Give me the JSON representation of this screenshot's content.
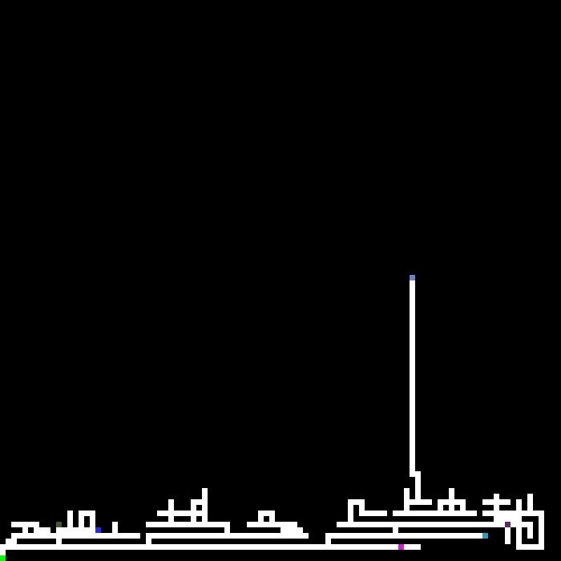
{
  "game": {
    "background": "#000000",
    "path_color": "#ffffff",
    "grid_cols": 100,
    "grid_rows": 100,
    "markers": [
      {
        "name": "agent-marker",
        "color": "#00ff00"
      },
      {
        "name": "goal-marker-blue",
        "color": "#7080c8"
      },
      {
        "name": "item-marker-navy",
        "color": "#2a2ae0"
      },
      {
        "name": "item-marker-olive",
        "color": "#445533"
      },
      {
        "name": "item-marker-magenta",
        "color": "#cc22cc"
      },
      {
        "name": "item-marker-teal",
        "color": "#3399bb"
      },
      {
        "name": "item-marker-purple",
        "color": "#553355"
      }
    ]
  }
}
